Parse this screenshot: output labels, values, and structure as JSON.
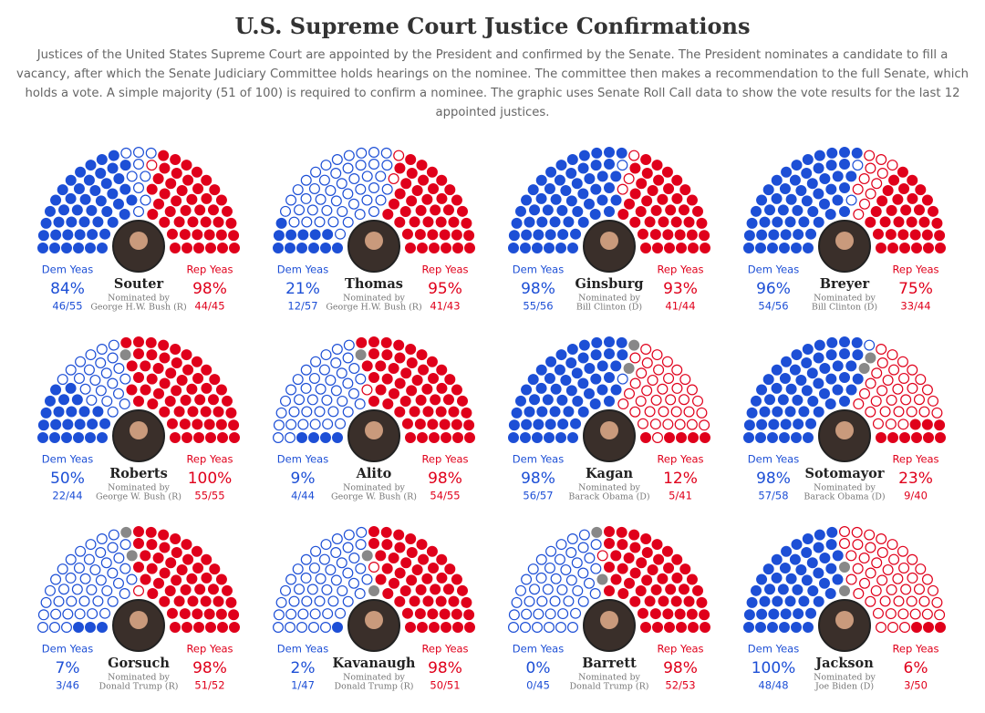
{
  "title": "U.S. Supreme Court Justice Confirmations",
  "subtitle": "Justices of the United States Supreme Court are appointed by the President and confirmed by the Senate. The President nominates a candidate to fill a vacancy, after which the Senate Judiciary Committee holds hearings on the nominee. The committee then makes a recommendation to the full Senate, which holds a vote. A simple majority (51 of 100) is required to confirm a nominee. The graphic uses Senate Roll Call data to show the vote results for the last 12 appointed justices.",
  "chart_data": [
    {
      "type": "hemicycle",
      "name": "Souter",
      "nominated_label": "Nominated by",
      "nominated_by": "George H.W. Bush (R)",
      "dem": {
        "label": "Dem Yeas",
        "yeas": 46,
        "total": 55,
        "percent": 84,
        "percent_label": "84%",
        "fraction_label": "46/55",
        "color": "#1d4fd6"
      },
      "rep": {
        "label": "Rep Yeas",
        "yeas": 44,
        "total": 45,
        "percent": 98,
        "percent_label": "98%",
        "fraction_label": "44/45",
        "color": "#e0001b"
      }
    },
    {
      "type": "hemicycle",
      "name": "Thomas",
      "nominated_label": "Nominated by",
      "nominated_by": "George H.W. Bush (R)",
      "dem": {
        "label": "Dem Yeas",
        "yeas": 12,
        "total": 57,
        "percent": 21,
        "percent_label": "21%",
        "fraction_label": "12/57",
        "color": "#1d4fd6"
      },
      "rep": {
        "label": "Rep Yeas",
        "yeas": 41,
        "total": 43,
        "percent": 95,
        "percent_label": "95%",
        "fraction_label": "41/43",
        "color": "#e0001b"
      }
    },
    {
      "type": "hemicycle",
      "name": "Ginsburg",
      "nominated_label": "Nominated by",
      "nominated_by": "Bill Clinton (D)",
      "dem": {
        "label": "Dem Yeas",
        "yeas": 55,
        "total": 56,
        "percent": 98,
        "percent_label": "98%",
        "fraction_label": "55/56",
        "color": "#1d4fd6"
      },
      "rep": {
        "label": "Rep Yeas",
        "yeas": 41,
        "total": 44,
        "percent": 93,
        "percent_label": "93%",
        "fraction_label": "41/44",
        "color": "#e0001b"
      }
    },
    {
      "type": "hemicycle",
      "name": "Breyer",
      "nominated_label": "Nominated by",
      "nominated_by": "Bill Clinton (D)",
      "dem": {
        "label": "Dem Yeas",
        "yeas": 54,
        "total": 56,
        "percent": 96,
        "percent_label": "96%",
        "fraction_label": "54/56",
        "color": "#1d4fd6"
      },
      "rep": {
        "label": "Rep Yeas",
        "yeas": 33,
        "total": 44,
        "percent": 75,
        "percent_label": "75%",
        "fraction_label": "33/44",
        "color": "#e0001b"
      }
    },
    {
      "type": "hemicycle",
      "name": "Roberts",
      "nominated_label": "Nominated by",
      "nominated_by": "George W. Bush (R)",
      "dem": {
        "label": "Dem Yeas",
        "yeas": 22,
        "total": 44,
        "percent": 50,
        "percent_label": "50%",
        "fraction_label": "22/44",
        "color": "#1d4fd6"
      },
      "rep": {
        "label": "Rep Yeas",
        "yeas": 55,
        "total": 55,
        "percent": 100,
        "percent_label": "100%",
        "fraction_label": "55/55",
        "color": "#e0001b"
      }
    },
    {
      "type": "hemicycle",
      "name": "Alito",
      "nominated_label": "Nominated by",
      "nominated_by": "George W. Bush (R)",
      "dem": {
        "label": "Dem Yeas",
        "yeas": 4,
        "total": 44,
        "percent": 9,
        "percent_label": "9%",
        "fraction_label": "4/44",
        "color": "#1d4fd6"
      },
      "rep": {
        "label": "Rep Yeas",
        "yeas": 54,
        "total": 55,
        "percent": 98,
        "percent_label": "98%",
        "fraction_label": "54/55",
        "color": "#e0001b"
      }
    },
    {
      "type": "hemicycle",
      "name": "Kagan",
      "nominated_label": "Nominated by",
      "nominated_by": "Barack Obama (D)",
      "dem": {
        "label": "Dem Yeas",
        "yeas": 56,
        "total": 57,
        "percent": 98,
        "percent_label": "98%",
        "fraction_label": "56/57",
        "color": "#1d4fd6"
      },
      "rep": {
        "label": "Rep Yeas",
        "yeas": 5,
        "total": 41,
        "percent": 12,
        "percent_label": "12%",
        "fraction_label": "5/41",
        "color": "#e0001b"
      }
    },
    {
      "type": "hemicycle",
      "name": "Sotomayor",
      "nominated_label": "Nominated by",
      "nominated_by": "Barack Obama (D)",
      "dem": {
        "label": "Dem Yeas",
        "yeas": 57,
        "total": 58,
        "percent": 98,
        "percent_label": "98%",
        "fraction_label": "57/58",
        "color": "#1d4fd6"
      },
      "rep": {
        "label": "Rep Yeas",
        "yeas": 9,
        "total": 40,
        "percent": 23,
        "percent_label": "23%",
        "fraction_label": "9/40",
        "color": "#e0001b"
      }
    },
    {
      "type": "hemicycle",
      "name": "Gorsuch",
      "nominated_label": "Nominated by",
      "nominated_by": "Donald Trump (R)",
      "dem": {
        "label": "Dem Yeas",
        "yeas": 3,
        "total": 46,
        "percent": 7,
        "percent_label": "7%",
        "fraction_label": "3/46",
        "color": "#1d4fd6"
      },
      "rep": {
        "label": "Rep Yeas",
        "yeas": 51,
        "total": 52,
        "percent": 98,
        "percent_label": "98%",
        "fraction_label": "51/52",
        "color": "#e0001b"
      }
    },
    {
      "type": "hemicycle",
      "name": "Kavanaugh",
      "nominated_label": "Nominated by",
      "nominated_by": "Donald Trump (R)",
      "dem": {
        "label": "Dem Yeas",
        "yeas": 1,
        "total": 47,
        "percent": 2,
        "percent_label": "2%",
        "fraction_label": "1/47",
        "color": "#1d4fd6"
      },
      "rep": {
        "label": "Rep Yeas",
        "yeas": 50,
        "total": 51,
        "percent": 98,
        "percent_label": "98%",
        "fraction_label": "50/51",
        "color": "#e0001b"
      }
    },
    {
      "type": "hemicycle",
      "name": "Barrett",
      "nominated_label": "Nominated by",
      "nominated_by": "Donald Trump (R)",
      "dem": {
        "label": "Dem Yeas",
        "yeas": 0,
        "total": 45,
        "percent": 0,
        "percent_label": "0%",
        "fraction_label": "0/45",
        "color": "#1d4fd6"
      },
      "rep": {
        "label": "Rep Yeas",
        "yeas": 52,
        "total": 53,
        "percent": 98,
        "percent_label": "98%",
        "fraction_label": "52/53",
        "color": "#e0001b"
      }
    },
    {
      "type": "hemicycle",
      "name": "Jackson",
      "nominated_label": "Nominated by",
      "nominated_by": "Joe Biden (D)",
      "dem": {
        "label": "Dem Yeas",
        "yeas": 48,
        "total": 48,
        "percent": 100,
        "percent_label": "100%",
        "fraction_label": "48/48",
        "color": "#1d4fd6"
      },
      "rep": {
        "label": "Rep Yeas",
        "yeas": 3,
        "total": 50,
        "percent": 6,
        "percent_label": "6%",
        "fraction_label": "3/50",
        "color": "#e0001b"
      }
    }
  ]
}
